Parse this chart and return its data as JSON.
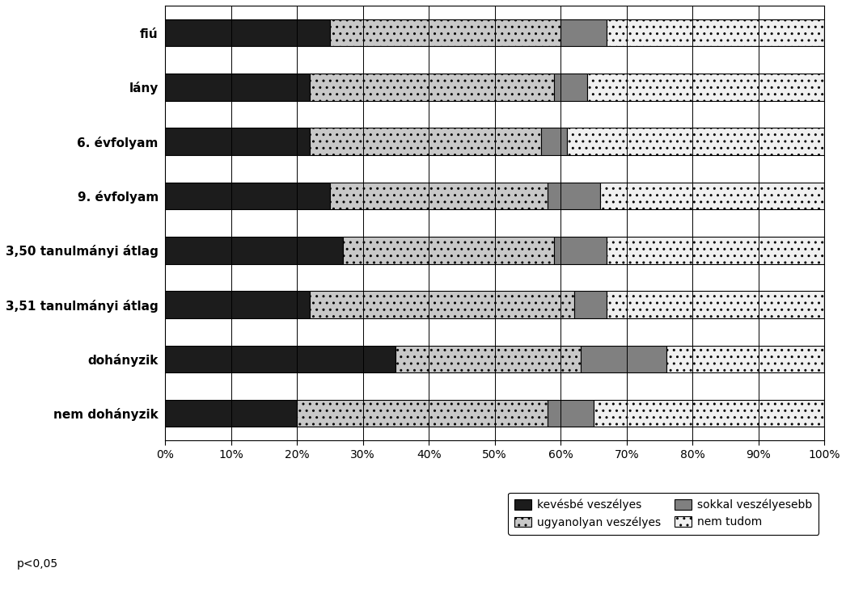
{
  "categories": [
    "fiú",
    "lány",
    "6. évfolyam",
    "9. évfolyam",
    "3,50 tanulmányi átlag",
    "3,51 tanulmányi átlag",
    "dohányzik",
    "nem dohányzik"
  ],
  "series": {
    "kevésbé veszélyes": [
      25,
      22,
      22,
      25,
      27,
      22,
      35,
      20
    ],
    "ugyanolyan veszélyes": [
      35,
      37,
      35,
      33,
      32,
      40,
      28,
      38
    ],
    "sokkal veszélyesebb": [
      7,
      5,
      4,
      8,
      8,
      5,
      13,
      7
    ],
    "nem tudom": [
      33,
      36,
      39,
      34,
      33,
      33,
      24,
      35
    ]
  },
  "colors": {
    "kevésbé veszélyes": "#1c1c1c",
    "ugyanolyan veszélyes": "#c8c8c8",
    "sokkal veszélyesebb": "#808080",
    "nem tudom": "#f0f0f0"
  },
  "hatches": {
    "kevésbé veszélyes": "",
    "ugyanolyan veszélyes": "..",
    "sokkal veszélyesebb": "",
    "nem tudom": ".."
  },
  "legend_order": [
    "kevésbé veszélyes",
    "ugyanolyan veszélyes",
    "sokkal veszélyesebb",
    "nem tudom"
  ],
  "annotation": "p<0,05",
  "bar_height": 0.5,
  "figsize": [
    10.46,
    7.34
  ],
  "dpi": 100
}
